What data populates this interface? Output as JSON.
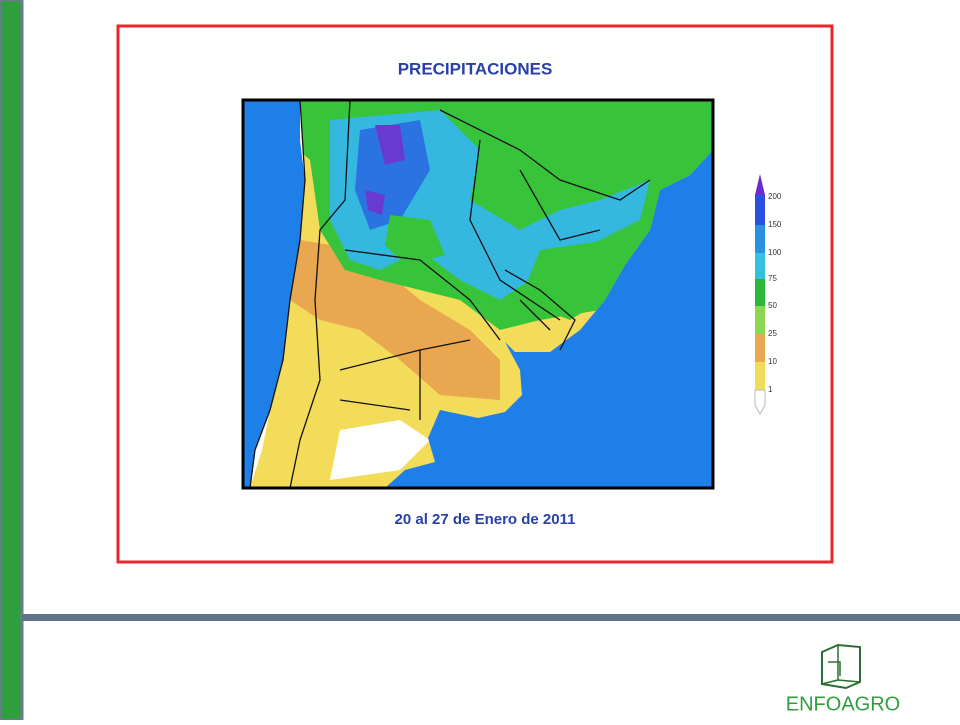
{
  "map": {
    "title": "PRECIPITACIONES",
    "date": "20 al 27 de Enero de 2011",
    "legend": {
      "levels": [
        "200",
        "150",
        "100",
        "75",
        "50",
        "25",
        "10",
        "1"
      ]
    }
  },
  "logo": {
    "text": "ENFOAGRO"
  }
}
